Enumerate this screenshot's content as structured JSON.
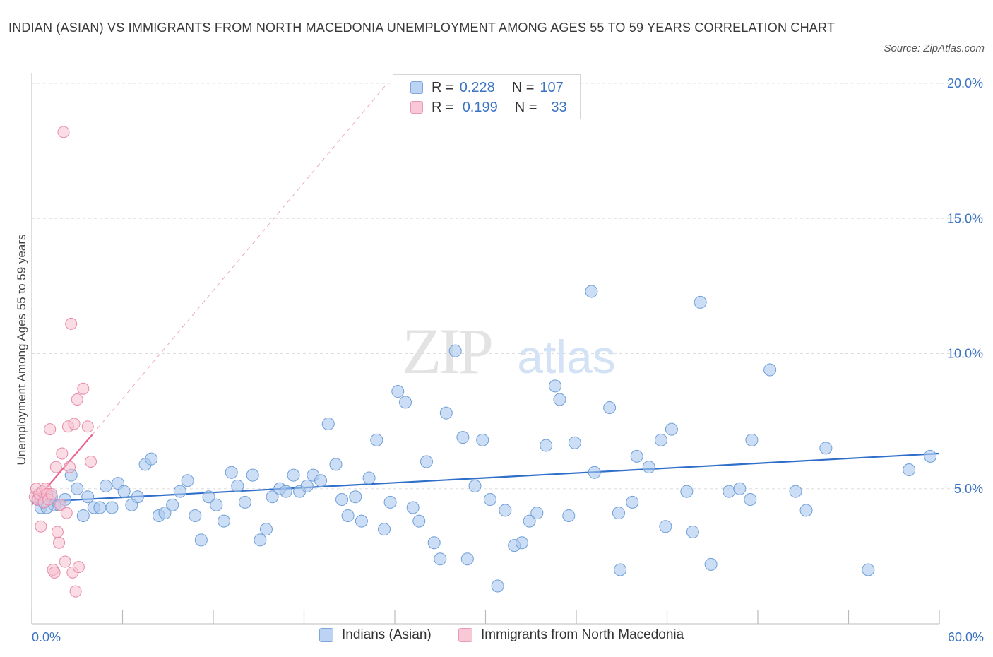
{
  "header": {
    "title": "INDIAN (ASIAN) VS IMMIGRANTS FROM NORTH MACEDONIA UNEMPLOYMENT AMONG AGES 55 TO 59 YEARS CORRELATION CHART",
    "source": "Source: ZipAtlas.com"
  },
  "legend": {
    "rows": [
      {
        "r_label": "R =",
        "r_value": "0.228",
        "n_label": "N =",
        "n_value": "107"
      },
      {
        "r_label": "R =",
        "r_value": "0.199",
        "n_label": "N =",
        "n_value": "33"
      }
    ]
  },
  "watermark": {
    "zip": "ZIP",
    "atlas": "atlas"
  },
  "colors": {
    "blue_fill": "#aac8ef",
    "blue_stroke": "#6f9fd8",
    "blue_line": "#2f6fc9",
    "pink_fill": "#f6bfd0",
    "pink_stroke": "#e88aa8",
    "pink_line": "#e8638f",
    "tick_label": "#3b73c4",
    "grid": "#dddddd"
  },
  "chart_data": {
    "type": "scatter",
    "title": "INDIAN (ASIAN) VS IMMIGRANTS FROM NORTH MACEDONIA UNEMPLOYMENT AMONG AGES 55 TO 59 YEARS CORRELATION CHART",
    "xlabel": "",
    "ylabel": "Unemployment Among Ages 55 to 59 years",
    "xlim": [
      0,
      60
    ],
    "ylim": [
      0,
      20
    ],
    "x_tick_labels": [
      "0.0%",
      "60.0%"
    ],
    "y_ticks": [
      5,
      10,
      15,
      20
    ],
    "y_tick_labels": [
      "5.0%",
      "10.0%",
      "15.0%",
      "20.0%"
    ],
    "grid": true,
    "legend_position": "bottom",
    "series": [
      {
        "name": "Indians (Asian)",
        "color": "#aac8ef",
        "r": 0.228,
        "n": 107,
        "trend": {
          "x": [
            0,
            60
          ],
          "y": [
            4.5,
            6.3
          ]
        },
        "points": [
          [
            0.4,
            4.6
          ],
          [
            0.6,
            4.3
          ],
          [
            0.8,
            4.5
          ],
          [
            1.0,
            4.3
          ],
          [
            1.3,
            4.7
          ],
          [
            1.5,
            4.4
          ],
          [
            1.8,
            4.4
          ],
          [
            2.2,
            4.6
          ],
          [
            2.6,
            5.5
          ],
          [
            3.0,
            5.0
          ],
          [
            3.4,
            4.0
          ],
          [
            3.7,
            4.7
          ],
          [
            4.1,
            4.3
          ],
          [
            4.5,
            4.3
          ],
          [
            4.9,
            5.1
          ],
          [
            5.3,
            4.3
          ],
          [
            5.7,
            5.2
          ],
          [
            6.1,
            4.9
          ],
          [
            6.6,
            4.4
          ],
          [
            7.0,
            4.7
          ],
          [
            7.5,
            5.9
          ],
          [
            7.9,
            6.1
          ],
          [
            8.4,
            4.0
          ],
          [
            8.8,
            4.1
          ],
          [
            9.3,
            4.4
          ],
          [
            9.8,
            4.9
          ],
          [
            10.3,
            5.3
          ],
          [
            10.8,
            4.0
          ],
          [
            11.2,
            3.1
          ],
          [
            11.7,
            4.7
          ],
          [
            12.2,
            4.4
          ],
          [
            12.7,
            3.8
          ],
          [
            13.2,
            5.6
          ],
          [
            13.6,
            5.1
          ],
          [
            14.1,
            4.5
          ],
          [
            14.6,
            5.5
          ],
          [
            15.1,
            3.1
          ],
          [
            15.5,
            3.5
          ],
          [
            15.9,
            4.7
          ],
          [
            16.4,
            5.0
          ],
          [
            16.8,
            4.9
          ],
          [
            17.3,
            5.5
          ],
          [
            17.7,
            4.9
          ],
          [
            18.2,
            5.1
          ],
          [
            18.6,
            5.5
          ],
          [
            19.1,
            5.3
          ],
          [
            19.6,
            7.4
          ],
          [
            20.1,
            5.9
          ],
          [
            20.5,
            4.6
          ],
          [
            20.9,
            4.0
          ],
          [
            21.4,
            4.7
          ],
          [
            21.8,
            3.8
          ],
          [
            22.3,
            5.4
          ],
          [
            22.8,
            6.8
          ],
          [
            23.3,
            3.5
          ],
          [
            23.7,
            4.5
          ],
          [
            24.2,
            8.6
          ],
          [
            24.7,
            8.2
          ],
          [
            25.2,
            4.3
          ],
          [
            25.6,
            3.8
          ],
          [
            26.1,
            6.0
          ],
          [
            26.6,
            3.0
          ],
          [
            27.0,
            2.4
          ],
          [
            27.4,
            7.8
          ],
          [
            28.0,
            10.1
          ],
          [
            28.5,
            6.9
          ],
          [
            28.8,
            2.4
          ],
          [
            29.3,
            5.1
          ],
          [
            29.8,
            6.8
          ],
          [
            30.3,
            4.6
          ],
          [
            30.8,
            1.4
          ],
          [
            31.3,
            4.2
          ],
          [
            31.9,
            2.9
          ],
          [
            32.4,
            3.0
          ],
          [
            32.9,
            3.8
          ],
          [
            33.4,
            4.1
          ],
          [
            34.0,
            6.6
          ],
          [
            34.6,
            8.8
          ],
          [
            34.9,
            8.3
          ],
          [
            35.5,
            4.0
          ],
          [
            35.9,
            6.7
          ],
          [
            37.0,
            12.3
          ],
          [
            37.2,
            5.6
          ],
          [
            38.2,
            8.0
          ],
          [
            38.8,
            4.1
          ],
          [
            38.9,
            2.0
          ],
          [
            39.7,
            4.5
          ],
          [
            40.0,
            6.2
          ],
          [
            40.8,
            5.8
          ],
          [
            41.6,
            6.8
          ],
          [
            41.9,
            3.6
          ],
          [
            42.3,
            7.2
          ],
          [
            43.3,
            4.9
          ],
          [
            43.7,
            3.4
          ],
          [
            44.2,
            11.9
          ],
          [
            44.9,
            2.2
          ],
          [
            46.1,
            4.9
          ],
          [
            46.8,
            5.0
          ],
          [
            47.5,
            4.6
          ],
          [
            47.6,
            6.8
          ],
          [
            48.8,
            9.4
          ],
          [
            50.5,
            4.9
          ],
          [
            51.2,
            4.2
          ],
          [
            52.5,
            6.5
          ],
          [
            55.3,
            2.0
          ],
          [
            58.0,
            5.7
          ],
          [
            59.4,
            6.2
          ]
        ]
      },
      {
        "name": "Immigrants from North Macedonia",
        "color": "#f6bfd0",
        "r": 0.199,
        "n": 33,
        "trend": {
          "x": [
            0,
            4.0
          ],
          "y": [
            4.4,
            7.0
          ]
        },
        "trend_extension": {
          "x": [
            4.0,
            23.5
          ],
          "y": [
            7.0,
            20.0
          ]
        },
        "points": [
          [
            0.2,
            4.7
          ],
          [
            0.3,
            5.0
          ],
          [
            0.4,
            4.6
          ],
          [
            0.5,
            4.8
          ],
          [
            0.6,
            3.6
          ],
          [
            0.7,
            4.9
          ],
          [
            0.8,
            4.5
          ],
          [
            0.9,
            5.0
          ],
          [
            1.0,
            4.8
          ],
          [
            1.1,
            4.6
          ],
          [
            1.2,
            7.2
          ],
          [
            1.3,
            4.8
          ],
          [
            1.4,
            2.0
          ],
          [
            1.5,
            1.9
          ],
          [
            1.6,
            5.8
          ],
          [
            1.7,
            3.4
          ],
          [
            1.8,
            3.0
          ],
          [
            1.9,
            4.4
          ],
          [
            2.0,
            6.3
          ],
          [
            2.1,
            18.2
          ],
          [
            2.2,
            2.3
          ],
          [
            2.3,
            4.1
          ],
          [
            2.4,
            7.3
          ],
          [
            2.5,
            5.8
          ],
          [
            2.6,
            11.1
          ],
          [
            2.7,
            1.9
          ],
          [
            2.8,
            7.4
          ],
          [
            2.9,
            1.2
          ],
          [
            3.0,
            8.3
          ],
          [
            3.1,
            2.1
          ],
          [
            3.4,
            8.7
          ],
          [
            3.7,
            7.3
          ],
          [
            3.9,
            6.0
          ]
        ]
      }
    ]
  },
  "bottom_legend": {
    "items": [
      {
        "label": "Indians (Asian)"
      },
      {
        "label": "Immigrants from North Macedonia"
      }
    ]
  }
}
